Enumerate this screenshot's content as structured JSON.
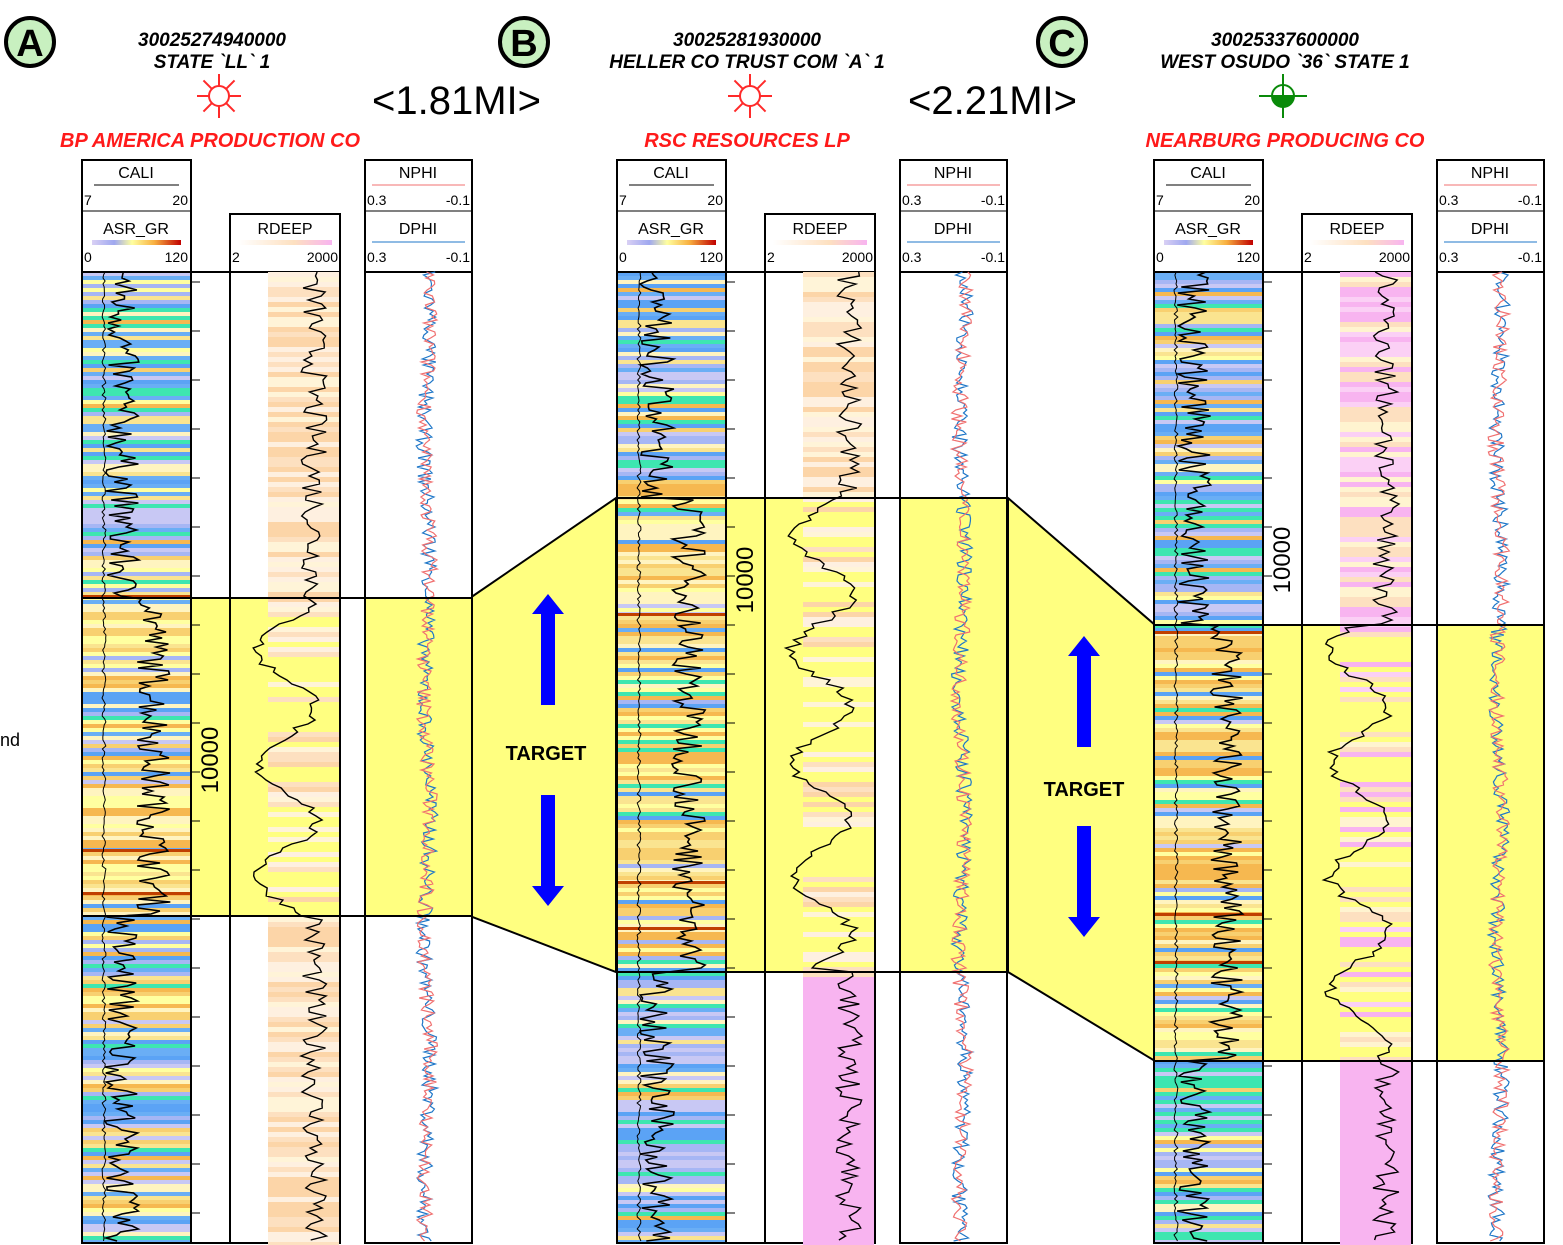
{
  "wells": [
    {
      "id": "A",
      "uwi": "30025274940000",
      "name": "STATE `LL` 1",
      "operator": "BP AMERICA PRODUCTION CO",
      "symbol": "dry-hole-symbol",
      "depth_label": "10000"
    },
    {
      "id": "B",
      "uwi": "30025281930000",
      "name": "HELLER CO TRUST COM `A` 1",
      "operator": "RSC RESOURCES LP",
      "symbol": "dry-hole-symbol",
      "depth_label": "10000"
    },
    {
      "id": "C",
      "uwi": "30025337600000",
      "name": "WEST OSUDO `36` STATE 1",
      "operator": "NEARBURG PRODUCING CO",
      "symbol": "oil-well-symbol",
      "depth_label": "10000"
    }
  ],
  "distances": [
    "<1.81MI>",
    "<2.21MI>"
  ],
  "curves": {
    "cali": {
      "name": "CALI",
      "min": "7",
      "max": "20"
    },
    "gr": {
      "name": "ASR_GR",
      "min": "0",
      "max": "120"
    },
    "rdeep": {
      "name": "RDEEP",
      "min": "2",
      "max": "2000"
    },
    "nphi": {
      "name": "NPHI",
      "min": "0.3",
      "max": "-0.1"
    },
    "dphi": {
      "name": "DPHI",
      "min": "0.3",
      "max": "-0.1"
    }
  },
  "target": {
    "label": "TARGET"
  },
  "edge_text": "nd",
  "colors": {
    "target_zone": "#ffff80",
    "operator_text": "#ff1a1a",
    "arrow": "#0000ff",
    "gr_shale": "#5ba3f5",
    "gr_clean": "#f8d070",
    "nphi_curve": "#f07070",
    "dphi_curve": "#1f77c8",
    "rdeep_fill_low": "#fcd5a8",
    "rdeep_fill_high": "#f8b4f0"
  }
}
